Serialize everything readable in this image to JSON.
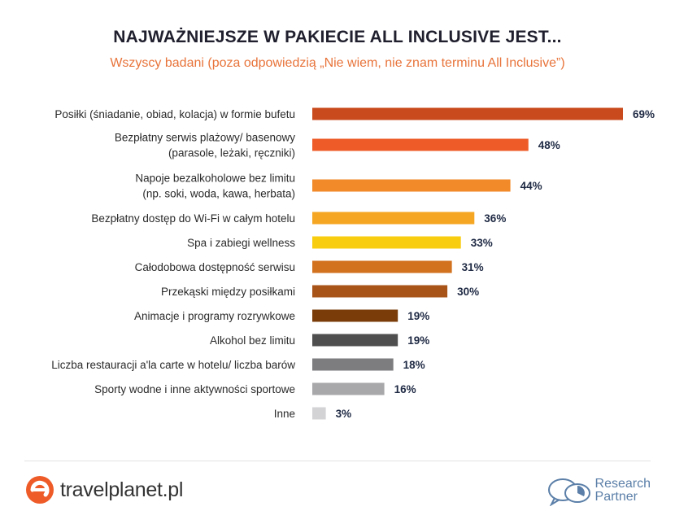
{
  "header": {
    "title": "NAJWAŻNIEJSZE W PAKIECIE ALL INCLUSIVE JEST...",
    "subtitle": "Wszyscy badani (poza odpowiedzią „Nie wiem, nie znam terminu All Inclusive”)"
  },
  "chart_data": {
    "type": "bar",
    "orientation": "horizontal",
    "title": "NAJWAŻNIEJSZE W PAKIECIE ALL INCLUSIVE JEST...",
    "subtitle": "Wszyscy badani (poza odpowiedzią „Nie wiem, nie znam terminu All Inclusive”)",
    "xlim": [
      0,
      69
    ],
    "grid": false,
    "legend": "none",
    "value_suffix": "%",
    "categories": [
      [
        "Posiłki (śniadanie, obiad, kolacja) w formie bufetu"
      ],
      [
        "Bezpłatny serwis plażowy/ basenowy",
        "(parasole, leżaki, ręczniki)"
      ],
      [
        "Napoje bezalkoholowe bez limitu",
        "(np. soki, woda, kawa, herbata)"
      ],
      [
        "Bezpłatny dostęp do Wi-Fi w całym hotelu"
      ],
      [
        "Spa i zabiegi wellness"
      ],
      [
        "Całodobowa dostępność serwisu"
      ],
      [
        "Przekąski między posiłkami"
      ],
      [
        "Animacje i programy rozrywkowe"
      ],
      [
        "Alkohol bez limitu"
      ],
      [
        "Liczba restauracji a'la carte w hotelu/ liczba barów"
      ],
      [
        "Sporty wodne i inne aktywności sportowe"
      ],
      [
        "Inne"
      ]
    ],
    "values": [
      69,
      48,
      44,
      36,
      33,
      31,
      30,
      19,
      19,
      18,
      16,
      3
    ],
    "colors": [
      "#c94a1c",
      "#ee5b28",
      "#f28a2a",
      "#f5a623",
      "#f9cd0f",
      "#d2721f",
      "#a85317",
      "#7a3c08",
      "#4f4f4f",
      "#7d7d80",
      "#a8a8ab",
      "#d3d3d6"
    ]
  },
  "footer": {
    "left_logo_text": "travelplanet.pl",
    "right_logo_line1": "Research",
    "right_logo_line2": "Partner"
  }
}
